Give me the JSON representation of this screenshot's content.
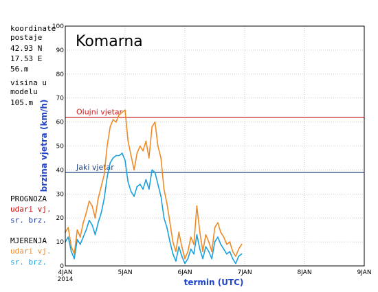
{
  "side_panel": {
    "coords_label1": "koordinate",
    "coords_label2": "postaje",
    "lat": "42.93 N",
    "lon": "17.53 E",
    "alt": "56.m",
    "model_label1": "visina u",
    "model_label2": "modelu",
    "model_alt": "105.m",
    "forecast_title": "PROGNOZA",
    "forecast_gust": "udari vj.",
    "forecast_mean": "sr. brz.",
    "obs_title": "MJERENJA",
    "obs_gust": "udari vj.",
    "obs_mean": "sr. brz."
  },
  "colors": {
    "forecast_gust": "#cc0000",
    "forecast_mean": "#1f3fa8",
    "obs_gust": "#f08a24",
    "obs_mean": "#1aa0dc",
    "storm_line": "#cc2222",
    "strong_line": "#1f3f7f",
    "axis_label": "#2244cc"
  },
  "chart_data": {
    "type": "line",
    "title": "Komarna",
    "xlabel": "termin (UTC)",
    "ylabel": "brzina vjetra (km/h)",
    "ylim": [
      0,
      100
    ],
    "yticks": [
      "0",
      "10",
      "20",
      "30",
      "40",
      "50",
      "60",
      "70",
      "80",
      "90",
      "100"
    ],
    "xlim": [
      4,
      9
    ],
    "xticks": [
      {
        "x": 4,
        "label": "4JAN",
        "sub": "2014"
      },
      {
        "x": 5,
        "label": "5JAN",
        "sub": ""
      },
      {
        "x": 6,
        "label": "6JAN",
        "sub": ""
      },
      {
        "x": 7,
        "label": "7JAN",
        "sub": ""
      },
      {
        "x": 8,
        "label": "8JAN",
        "sub": ""
      },
      {
        "x": 9,
        "label": "9JAN",
        "sub": ""
      }
    ],
    "grid": true,
    "thresholds": [
      {
        "label": "Olujni vjetar",
        "value": 62,
        "color": "#cc2222"
      },
      {
        "label": "Jaki vjetar",
        "value": 39,
        "color": "#1f3f7f"
      }
    ],
    "series": [
      {
        "name": "udari vj.",
        "color": "#f08a24",
        "x": [
          4.0,
          4.05,
          4.1,
          4.15,
          4.2,
          4.25,
          4.3,
          4.35,
          4.4,
          4.45,
          4.5,
          4.55,
          4.6,
          4.65,
          4.7,
          4.75,
          4.8,
          4.85,
          4.9,
          4.95,
          5.0,
          5.05,
          5.1,
          5.15,
          5.2,
          5.25,
          5.3,
          5.35,
          5.4,
          5.45,
          5.5,
          5.55,
          5.6,
          5.65,
          5.7,
          5.75,
          5.8,
          5.85,
          5.9,
          5.95,
          6.0,
          6.05,
          6.1,
          6.15,
          6.2,
          6.25,
          6.3,
          6.35,
          6.4,
          6.45,
          6.5,
          6.55,
          6.6,
          6.65,
          6.7,
          6.75,
          6.8,
          6.85,
          6.9,
          6.95
        ],
        "y": [
          14,
          16,
          8,
          5,
          15,
          12,
          18,
          22,
          27,
          25,
          20,
          28,
          33,
          38,
          50,
          58,
          61,
          60,
          63,
          64,
          65,
          52,
          46,
          40,
          47,
          50,
          48,
          52,
          45,
          58,
          60,
          50,
          45,
          32,
          26,
          18,
          10,
          6,
          14,
          8,
          3,
          6,
          12,
          9,
          25,
          14,
          6,
          13,
          10,
          6,
          16,
          18,
          14,
          12,
          9,
          10,
          6,
          4,
          7,
          9
        ]
      },
      {
        "name": "sr. brz.",
        "color": "#1aa0dc",
        "x": [
          4.0,
          4.05,
          4.1,
          4.15,
          4.2,
          4.25,
          4.3,
          4.35,
          4.4,
          4.45,
          4.5,
          4.55,
          4.6,
          4.65,
          4.7,
          4.75,
          4.8,
          4.85,
          4.9,
          4.95,
          5.0,
          5.05,
          5.1,
          5.15,
          5.2,
          5.25,
          5.3,
          5.35,
          5.4,
          5.45,
          5.5,
          5.55,
          5.6,
          5.65,
          5.7,
          5.75,
          5.8,
          5.85,
          5.9,
          5.95,
          6.0,
          6.05,
          6.1,
          6.15,
          6.2,
          6.25,
          6.3,
          6.35,
          6.4,
          6.45,
          6.5,
          6.55,
          6.6,
          6.65,
          6.7,
          6.75,
          6.8,
          6.85,
          6.9,
          6.95
        ],
        "y": [
          10,
          12,
          6,
          3,
          11,
          9,
          12,
          15,
          19,
          17,
          13,
          18,
          22,
          28,
          37,
          43,
          45,
          46,
          46,
          47,
          44,
          35,
          31,
          29,
          33,
          34,
          32,
          36,
          32,
          40,
          39,
          34,
          29,
          20,
          16,
          10,
          5,
          2,
          8,
          4,
          1,
          3,
          7,
          5,
          13,
          7,
          3,
          8,
          6,
          3,
          10,
          12,
          9,
          7,
          5,
          6,
          3,
          1,
          4,
          5
        ]
      }
    ]
  }
}
